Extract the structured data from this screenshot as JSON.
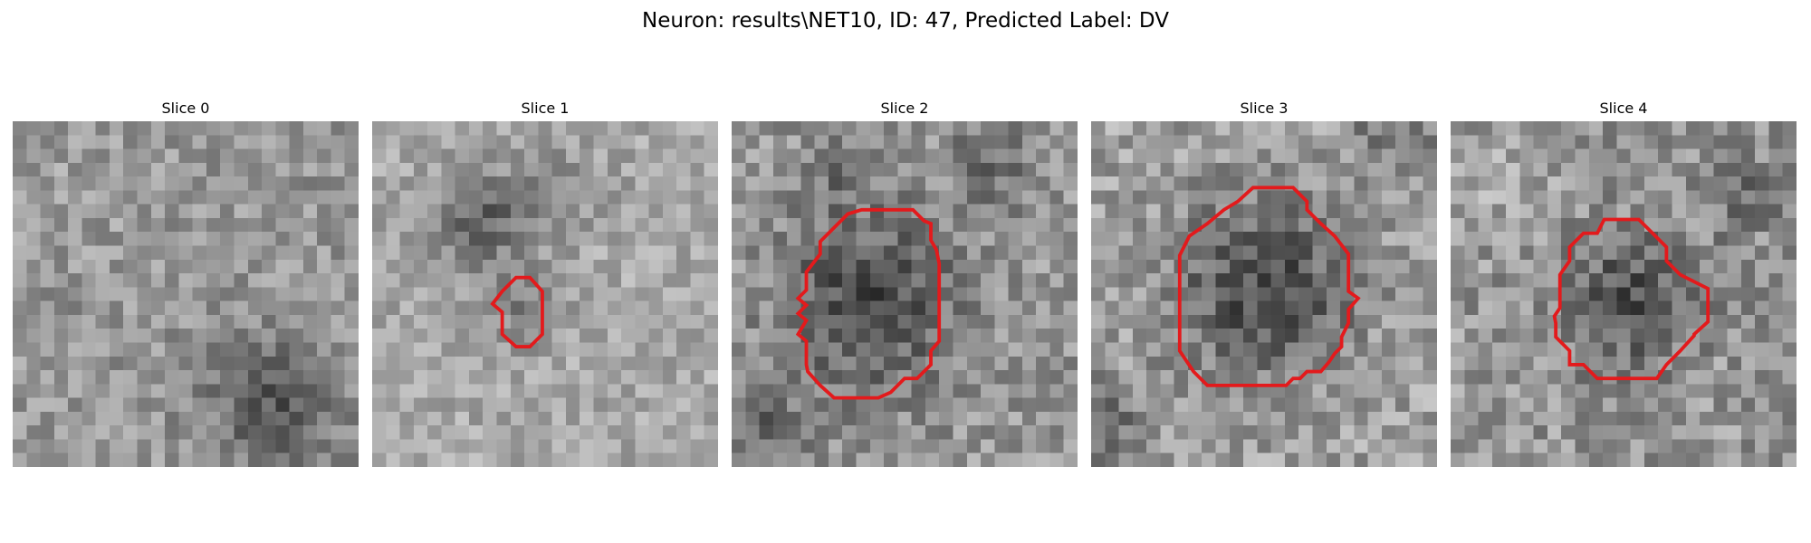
{
  "figure": {
    "title": "Neuron: results\\NET10, ID: 47, Predicted Label: DV",
    "contour_color": "#e31a1c",
    "colormap": "grayscale"
  },
  "slices": [
    {
      "title": "Slice 0",
      "has_contour": false
    },
    {
      "title": "Slice 1",
      "has_contour": true
    },
    {
      "title": "Slice 2",
      "has_contour": true
    },
    {
      "title": "Slice 3",
      "has_contour": true
    },
    {
      "title": "Slice 4",
      "has_contour": true
    }
  ]
}
